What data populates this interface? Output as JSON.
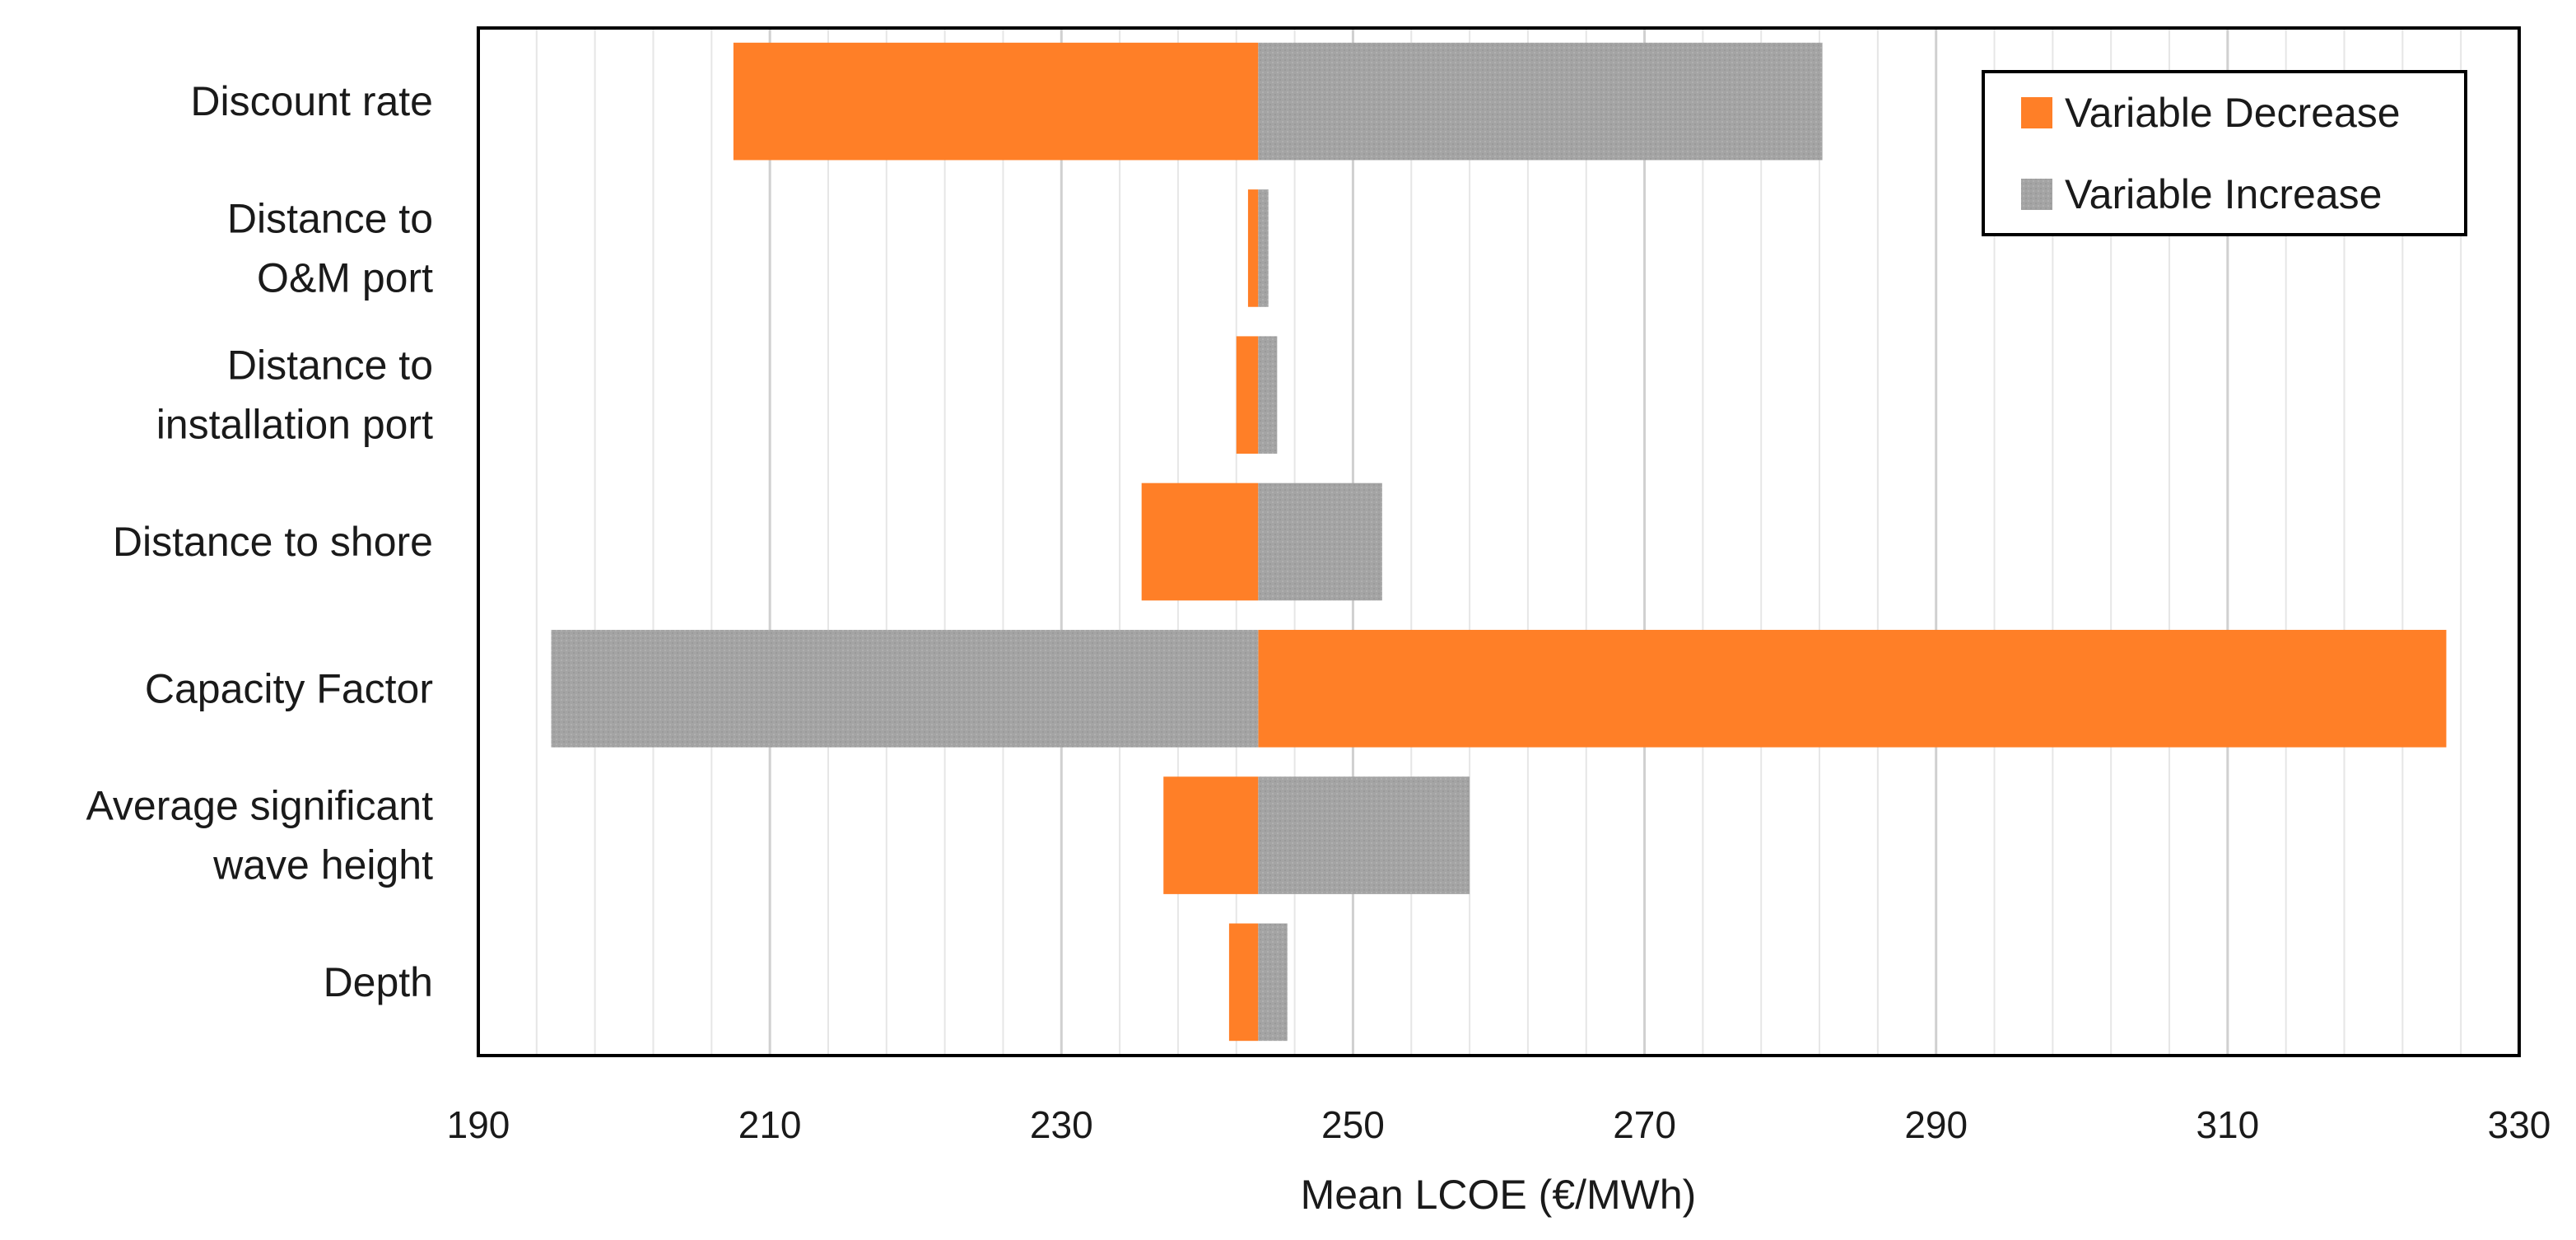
{
  "chart_data": {
    "type": "bar",
    "orientation": "horizontal",
    "subtype": "tornado",
    "title": "",
    "xlabel": "Mean LCOE (€/MWh)",
    "ylabel": "",
    "xlim": [
      190,
      330
    ],
    "xticks": [
      190,
      210,
      230,
      250,
      270,
      290,
      310,
      330
    ],
    "minor_gridline_step": 4,
    "baseline": 243.5,
    "categories": [
      [
        "Discount rate"
      ],
      [
        "Distance to",
        "O&M port"
      ],
      [
        "Distance to",
        "installation port"
      ],
      [
        "Distance to shore"
      ],
      [
        "Capacity Factor"
      ],
      [
        "Average significant",
        "wave height"
      ],
      [
        "Depth"
      ]
    ],
    "series": [
      {
        "name": "Variable Decrease",
        "color": "#FF7F27",
        "values": [
          207.5,
          242.8,
          242.0,
          235.5,
          325.0,
          237.0,
          241.5
        ]
      },
      {
        "name": "Variable Increase",
        "color": "#A6A6A6",
        "values": [
          282.2,
          244.2,
          244.8,
          252.0,
          195.0,
          258.0,
          245.5
        ]
      }
    ],
    "legend": {
      "position": "top-right",
      "entries": [
        "Variable Decrease",
        "Variable Increase"
      ]
    },
    "grid": "vertical"
  }
}
